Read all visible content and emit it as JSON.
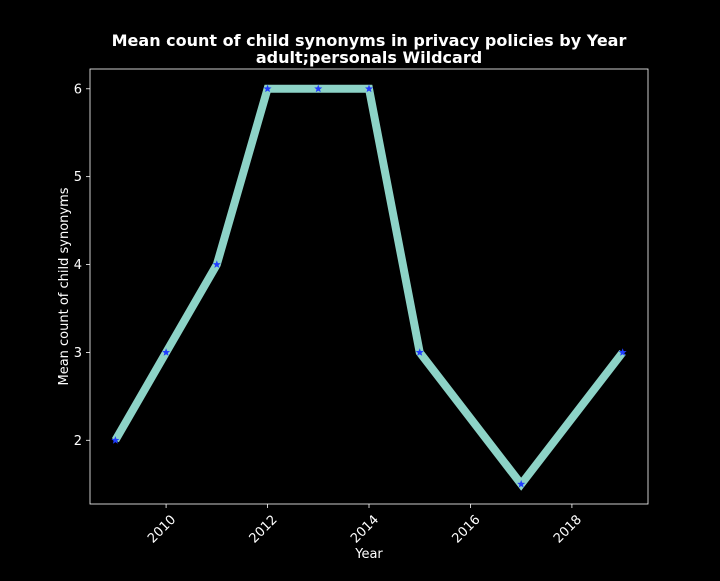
{
  "chart_data": {
    "type": "line",
    "title": "Mean count of child synonyms in privacy policies by Year",
    "subtitle": "adult;personals Wildcard",
    "xlabel": "Year",
    "ylabel": "Mean count of child synonyms",
    "x": [
      2009,
      2010,
      2011,
      2012,
      2013,
      2014,
      2015,
      2017,
      2019
    ],
    "y": [
      2,
      3,
      4,
      6,
      6,
      6,
      3,
      1.5,
      3
    ],
    "xlim": [
      2008.5,
      2019.5
    ],
    "ylim": [
      1.275,
      6.225
    ],
    "xticks": [
      2010,
      2012,
      2014,
      2016,
      2018
    ],
    "yticks": [
      2,
      3,
      4,
      5,
      6
    ],
    "grid": false,
    "line_color": "#8dd3c7",
    "marker_color": "#1f3cff",
    "marker": "star",
    "background": "#000000",
    "foreground": "#ffffff"
  }
}
